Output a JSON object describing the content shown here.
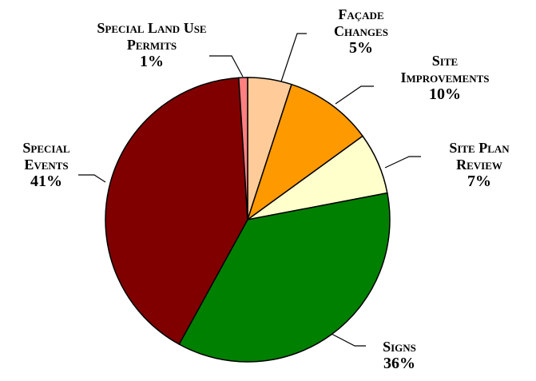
{
  "chart_data": {
    "type": "pie",
    "categories": [
      "Façade Changes",
      "Site Improvements",
      "Site Plan Review",
      "Signs",
      "Special Events",
      "Special Land Use Permits"
    ],
    "values": [
      5,
      10,
      7,
      36,
      41,
      1
    ],
    "value_labels": [
      "5%",
      "10%",
      "7%",
      "36%",
      "41%",
      "1%"
    ],
    "colors": [
      "#ffcc99",
      "#ff9900",
      "#ffffcc",
      "#008000",
      "#800000",
      "#ff8080"
    ]
  }
}
